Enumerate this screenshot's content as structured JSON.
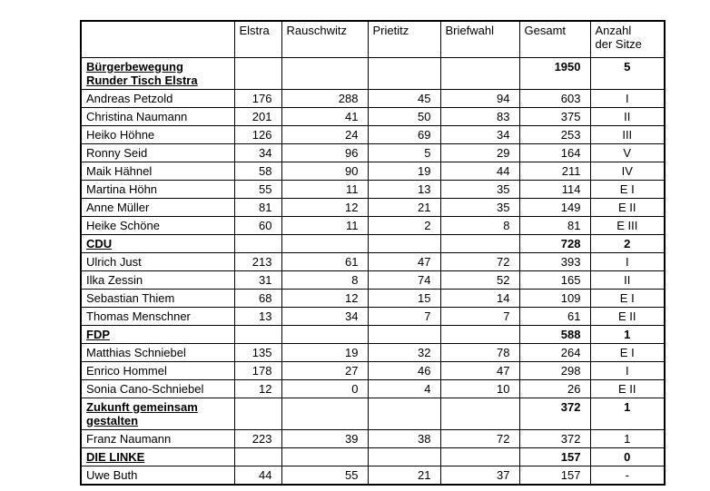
{
  "table": {
    "header": [
      "",
      "Elstra",
      "Rauschwitz",
      "Prietitz",
      "Briefwahl",
      "Gesamt",
      "Anzahl\nder Sitze"
    ],
    "rows": [
      {
        "type": "party",
        "name": "Bürgerbewegung\nRunder Tisch Elstra",
        "elstra": "",
        "rauschwitz": "",
        "prietitz": "",
        "briefwahl": "",
        "gesamt": "1950",
        "sitze": "5"
      },
      {
        "type": "person",
        "name": "Andreas Petzold",
        "elstra": "176",
        "rauschwitz": "288",
        "prietitz": "45",
        "briefwahl": "94",
        "gesamt": "603",
        "sitze": "I"
      },
      {
        "type": "person",
        "name": "Christina Naumann",
        "elstra": "201",
        "rauschwitz": "41",
        "prietitz": "50",
        "briefwahl": "83",
        "gesamt": "375",
        "sitze": "II"
      },
      {
        "type": "person",
        "name": "Heiko Höhne",
        "elstra": "126",
        "rauschwitz": "24",
        "prietitz": "69",
        "briefwahl": "34",
        "gesamt": "253",
        "sitze": "III"
      },
      {
        "type": "person",
        "name": "Ronny Seid",
        "elstra": "34",
        "rauschwitz": "96",
        "prietitz": "5",
        "briefwahl": "29",
        "gesamt": "164",
        "sitze": "V"
      },
      {
        "type": "person",
        "name": "Maik Hähnel",
        "elstra": "58",
        "rauschwitz": "90",
        "prietitz": "19",
        "briefwahl": "44",
        "gesamt": "211",
        "sitze": "IV"
      },
      {
        "type": "person",
        "name": "Martina Höhn",
        "elstra": "55",
        "rauschwitz": "11",
        "prietitz": "13",
        "briefwahl": "35",
        "gesamt": "114",
        "sitze": "E I"
      },
      {
        "type": "person",
        "name": "Anne Müller",
        "elstra": "81",
        "rauschwitz": "12",
        "prietitz": "21",
        "briefwahl": "35",
        "gesamt": "149",
        "sitze": "E II"
      },
      {
        "type": "person",
        "name": "Heike Schöne",
        "elstra": "60",
        "rauschwitz": "11",
        "prietitz": "2",
        "briefwahl": "8",
        "gesamt": "81",
        "sitze": "E III"
      },
      {
        "type": "party",
        "name": "CDU",
        "elstra": "",
        "rauschwitz": "",
        "prietitz": "",
        "briefwahl": "",
        "gesamt": "728",
        "sitze": "2"
      },
      {
        "type": "person",
        "name": "Ulrich Just",
        "elstra": "213",
        "rauschwitz": "61",
        "prietitz": "47",
        "briefwahl": "72",
        "gesamt": "393",
        "sitze": "I"
      },
      {
        "type": "person",
        "name": "Ilka Zessin",
        "elstra": "31",
        "rauschwitz": "8",
        "prietitz": "74",
        "briefwahl": "52",
        "gesamt": "165",
        "sitze": "II"
      },
      {
        "type": "person",
        "name": "Sebastian Thiem",
        "elstra": "68",
        "rauschwitz": "12",
        "prietitz": "15",
        "briefwahl": "14",
        "gesamt": "109",
        "sitze": "E I"
      },
      {
        "type": "person",
        "name": "Thomas Menschner",
        "elstra": "13",
        "rauschwitz": "34",
        "prietitz": "7",
        "briefwahl": "7",
        "gesamt": "61",
        "sitze": "E II"
      },
      {
        "type": "party",
        "name": "FDP",
        "elstra": "",
        "rauschwitz": "",
        "prietitz": "",
        "briefwahl": "",
        "gesamt": "588",
        "sitze": "1"
      },
      {
        "type": "person",
        "name": "Matthias Schniebel",
        "elstra": "135",
        "rauschwitz": "19",
        "prietitz": "32",
        "briefwahl": "78",
        "gesamt": "264",
        "sitze": "E I"
      },
      {
        "type": "person",
        "name": "Enrico Hommel",
        "elstra": "178",
        "rauschwitz": "27",
        "prietitz": "46",
        "briefwahl": "47",
        "gesamt": "298",
        "sitze": "I"
      },
      {
        "type": "person",
        "name": "Sonia Cano-Schniebel",
        "elstra": "12",
        "rauschwitz": "0",
        "prietitz": "4",
        "briefwahl": "10",
        "gesamt": "26",
        "sitze": "E II"
      },
      {
        "type": "party",
        "name": "Zukunft gemeinsam\ngestalten",
        "elstra": "",
        "rauschwitz": "",
        "prietitz": "",
        "briefwahl": "",
        "gesamt": "372",
        "sitze": "1"
      },
      {
        "type": "person",
        "name": "Franz Naumann",
        "elstra": "223",
        "rauschwitz": "39",
        "prietitz": "38",
        "briefwahl": "72",
        "gesamt": "372",
        "sitze": "1"
      },
      {
        "type": "party",
        "name": "DIE LINKE",
        "elstra": "",
        "rauschwitz": "",
        "prietitz": "",
        "briefwahl": "",
        "gesamt": "157",
        "sitze": "0"
      },
      {
        "type": "person",
        "name": "Uwe Buth",
        "elstra": "44",
        "rauschwitz": "55",
        "prietitz": "21",
        "briefwahl": "37",
        "gesamt": "157",
        "sitze": "-"
      }
    ]
  }
}
